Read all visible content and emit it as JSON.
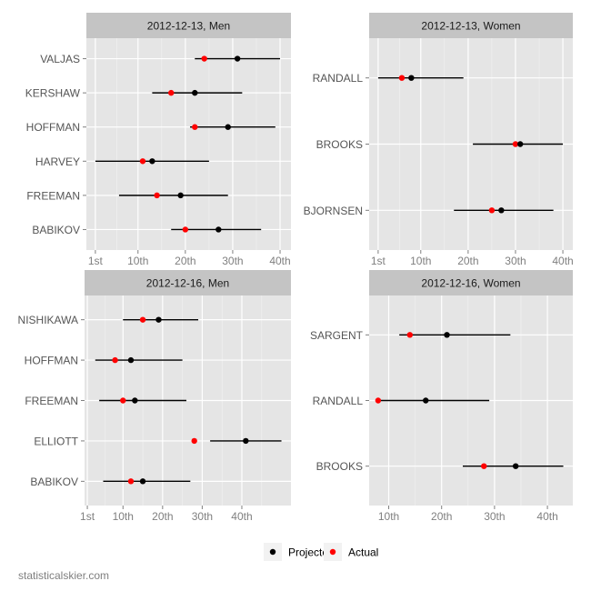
{
  "chart_data": [
    {
      "type": "scatter",
      "panel": "2012-12-13, Men",
      "xlim": [
        -0.9,
        42.3
      ],
      "x_breaks": [
        1,
        10,
        20,
        30,
        40
      ],
      "x_tick_labels": [
        "1st",
        "10th",
        "20th",
        "30th",
        "40th"
      ],
      "categories": [
        "VALJAS",
        "KERSHAW",
        "HOFFMAN",
        "HARVEY",
        "FREEMAN",
        "BABIKOV"
      ],
      "projected": [
        31,
        22,
        29,
        13,
        19,
        27
      ],
      "actual": [
        24,
        17,
        22,
        11,
        14,
        20
      ],
      "range_low": [
        22,
        13,
        21,
        1,
        6,
        17
      ],
      "range_high": [
        40,
        32,
        39,
        25,
        29,
        36
      ]
    },
    {
      "type": "scatter",
      "panel": "2012-12-13, Women",
      "xlim": [
        -0.9,
        42.1
      ],
      "x_breaks": [
        1,
        10,
        20,
        30,
        40
      ],
      "x_tick_labels": [
        "1st",
        "10th",
        "20th",
        "30th",
        "40th"
      ],
      "categories": [
        "RANDALL",
        "BROOKS",
        "BJORNSEN"
      ],
      "projected": [
        8,
        31,
        27
      ],
      "actual": [
        6,
        30,
        25
      ],
      "range_low": [
        1,
        21,
        17
      ],
      "range_high": [
        19,
        40,
        38
      ]
    },
    {
      "type": "scatter",
      "panel": "2012-12-16, Men",
      "xlim": [
        0.3,
        52.4
      ],
      "x_breaks": [
        1,
        10,
        20,
        30,
        40
      ],
      "x_tick_labels": [
        "1st",
        "10th",
        "20th",
        "30th",
        "40th"
      ],
      "categories": [
        "NISHIKAWA",
        "HOFFMAN",
        "FREEMAN",
        "ELLIOTT",
        "BABIKOV"
      ],
      "projected": [
        19,
        12,
        13,
        41,
        15
      ],
      "actual": [
        15,
        8,
        10,
        28,
        12
      ],
      "range_low": [
        10,
        3,
        4,
        32,
        5
      ],
      "range_high": [
        29,
        25,
        26,
        50,
        27
      ]
    },
    {
      "type": "scatter",
      "panel": "2012-12-16, Women",
      "xlim": [
        6.3,
        44.8
      ],
      "x_breaks": [
        10,
        20,
        30,
        40
      ],
      "x_tick_labels": [
        "10th",
        "20th",
        "30th",
        "40th"
      ],
      "categories": [
        "SARGENT",
        "RANDALL",
        "BROOKS"
      ],
      "projected": [
        21,
        17,
        34
      ],
      "actual": [
        14,
        8,
        28
      ],
      "range_low": [
        12,
        8,
        24
      ],
      "range_high": [
        33,
        29,
        43
      ]
    }
  ],
  "legend": {
    "position": "bottom",
    "items": [
      {
        "label": "Projected",
        "color": "#000000"
      },
      {
        "label": "Actual",
        "color": "#ff0000"
      }
    ]
  },
  "colors": {
    "panel_background": "#e5e5e5",
    "strip_background": "#c4c4c4",
    "projected": "#000000",
    "actual": "#ff0000"
  },
  "grid": true,
  "footer": "statisticalskier.com"
}
